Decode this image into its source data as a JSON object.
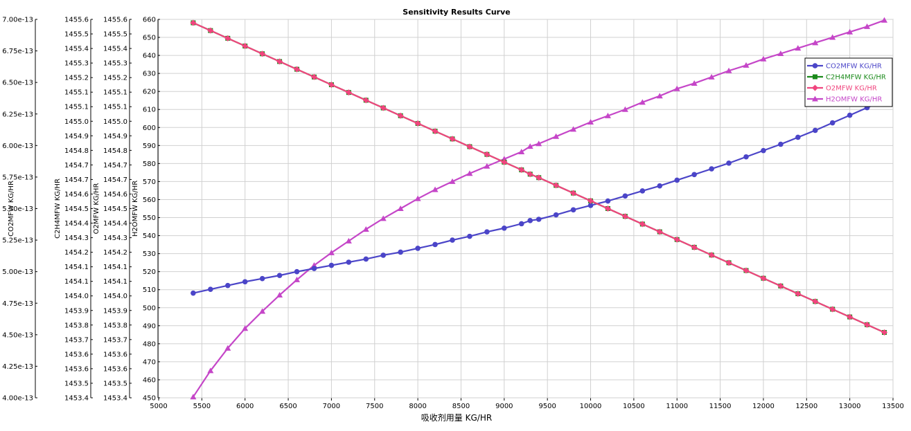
{
  "chart_data": {
    "type": "line",
    "title": "Sensitivity Results Curve",
    "xlabel": "吸收剂用量 KG/HR",
    "xlim": [
      5000,
      13500
    ],
    "xticks": [
      5000,
      5500,
      6000,
      6500,
      7000,
      7500,
      8000,
      8500,
      9000,
      9500,
      10000,
      10500,
      11000,
      11500,
      12000,
      12500,
      13000,
      13500
    ],
    "x": [
      5400,
      5600,
      5800,
      6000,
      6200,
      6400,
      6600,
      6800,
      7000,
      7200,
      7400,
      7600,
      7800,
      8000,
      8200,
      8400,
      8600,
      8800,
      9000,
      9200,
      9300,
      9400,
      9600,
      9800,
      10000,
      10200,
      10400,
      10600,
      10800,
      11000,
      11200,
      11400,
      11600,
      11800,
      12000,
      12200,
      12400,
      12600,
      12800,
      13000,
      13200,
      13400
    ],
    "axes": [
      {
        "name": "CO2MFW",
        "label": "CO2MFW KG/HR",
        "min": 4e-13,
        "max": 7e-13,
        "ticks": [
          "4.00e-13",
          "4.25e-13",
          "4.50e-13",
          "4.75e-13",
          "5.00e-13",
          "5.25e-13",
          "5.50e-13",
          "5.75e-13",
          "6.00e-13",
          "6.25e-13",
          "6.50e-13",
          "6.75e-13",
          "7.00e-13"
        ]
      },
      {
        "name": "C2H4MFW",
        "label": "C2H4MFW KG/HR",
        "min": 1453.4,
        "max": 1455.6,
        "ticks": [
          "1453.4",
          "1453.5",
          "1453.6",
          "1453.6",
          "1453.7",
          "1453.8",
          "1453.9",
          "1454.0",
          "1454.1",
          "1454.1",
          "1454.2",
          "1454.3",
          "1454.4",
          "1454.5",
          "1454.6",
          "1454.7",
          "1454.7",
          "1454.8",
          "1454.9",
          "1455.0",
          "1455.1",
          "1455.1",
          "1455.2",
          "1455.3",
          "1455.4",
          "1455.5",
          "1455.6"
        ]
      },
      {
        "name": "O2MFW",
        "label": "O2MFW KG/HR",
        "min": 1453.4,
        "max": 1455.6,
        "ticks": [
          "1453.4",
          "1453.5",
          "1453.6",
          "1453.6",
          "1453.7",
          "1453.8",
          "1453.9",
          "1454.0",
          "1454.1",
          "1454.1",
          "1454.2",
          "1454.3",
          "1454.4",
          "1454.5",
          "1454.6",
          "1454.7",
          "1454.7",
          "1454.8",
          "1454.9",
          "1455.0",
          "1455.1",
          "1455.1",
          "1455.2",
          "1455.3",
          "1455.4",
          "1455.5",
          "1455.6"
        ]
      },
      {
        "name": "H2OMFW",
        "label": "H2OMFW KG/HR",
        "min": 450,
        "max": 660,
        "ticks": [
          "450",
          "460",
          "470",
          "480",
          "490",
          "500",
          "510",
          "520",
          "530",
          "540",
          "550",
          "560",
          "570",
          "580",
          "590",
          "600",
          "610",
          "620",
          "630",
          "640",
          "650",
          "660"
        ]
      }
    ],
    "series": [
      {
        "name": "CO2MFW KG/HR",
        "axis": 0,
        "color": "#4b45c8",
        "marker": "circle",
        "values": [
          4.83e-13,
          4.86e-13,
          4.89e-13,
          4.92e-13,
          4.945e-13,
          4.97e-13,
          5e-13,
          5.025e-13,
          5.05e-13,
          5.075e-13,
          5.1e-13,
          5.13e-13,
          5.155e-13,
          5.185e-13,
          5.215e-13,
          5.25e-13,
          5.28e-13,
          5.315e-13,
          5.345e-13,
          5.38e-13,
          5.405e-13,
          5.415e-13,
          5.45e-13,
          5.49e-13,
          5.525e-13,
          5.56e-13,
          5.6e-13,
          5.64e-13,
          5.68e-13,
          5.725e-13,
          5.77e-13,
          5.815e-13,
          5.86e-13,
          5.91e-13,
          5.96e-13,
          6.01e-13,
          6.065e-13,
          6.12e-13,
          6.18e-13,
          6.24e-13,
          6.3e-13,
          6.36e-13
        ]
      },
      {
        "name": "C2H4MFW KG/HR",
        "axis": 1,
        "color": "#1a8a1a",
        "marker": "square",
        "values": [
          1455.58,
          1455.535,
          1455.49,
          1455.445,
          1455.4,
          1455.355,
          1455.31,
          1455.265,
          1455.22,
          1455.175,
          1455.13,
          1455.085,
          1455.04,
          1454.995,
          1454.95,
          1454.905,
          1454.86,
          1454.815,
          1454.77,
          1454.725,
          1454.7,
          1454.68,
          1454.635,
          1454.59,
          1454.545,
          1454.5,
          1454.455,
          1454.41,
          1454.365,
          1454.32,
          1454.275,
          1454.23,
          1454.185,
          1454.14,
          1454.095,
          1454.05,
          1454.005,
          1453.96,
          1453.915,
          1453.87,
          1453.825,
          1453.78
        ]
      },
      {
        "name": "O2MFW KG/HR",
        "axis": 2,
        "color": "#f0457e",
        "marker": "diamond",
        "values": [
          1455.58,
          1455.535,
          1455.49,
          1455.445,
          1455.4,
          1455.355,
          1455.31,
          1455.265,
          1455.22,
          1455.175,
          1455.13,
          1455.085,
          1455.04,
          1454.995,
          1454.95,
          1454.905,
          1454.86,
          1454.815,
          1454.77,
          1454.725,
          1454.7,
          1454.68,
          1454.635,
          1454.59,
          1454.545,
          1454.5,
          1454.455,
          1454.41,
          1454.365,
          1454.32,
          1454.275,
          1454.23,
          1454.185,
          1454.14,
          1454.095,
          1454.05,
          1454.005,
          1453.96,
          1453.915,
          1453.87,
          1453.825,
          1453.78
        ]
      },
      {
        "name": "H2OMFW KG/HR",
        "axis": 3,
        "color": "#c546c8",
        "marker": "triangle",
        "values": [
          450.5,
          465,
          477.5,
          488.5,
          498,
          507,
          515.5,
          523.5,
          530.5,
          537,
          543.5,
          549.5,
          555,
          560.5,
          565.5,
          570,
          574.5,
          578.5,
          582.5,
          586.5,
          589.5,
          591,
          595,
          599,
          603,
          606.5,
          610,
          614,
          617.5,
          621.5,
          624.5,
          628,
          631.5,
          634.5,
          638,
          641,
          644,
          647,
          650,
          653,
          656,
          659.5
        ]
      }
    ],
    "grid": true,
    "legend": "top-right"
  }
}
